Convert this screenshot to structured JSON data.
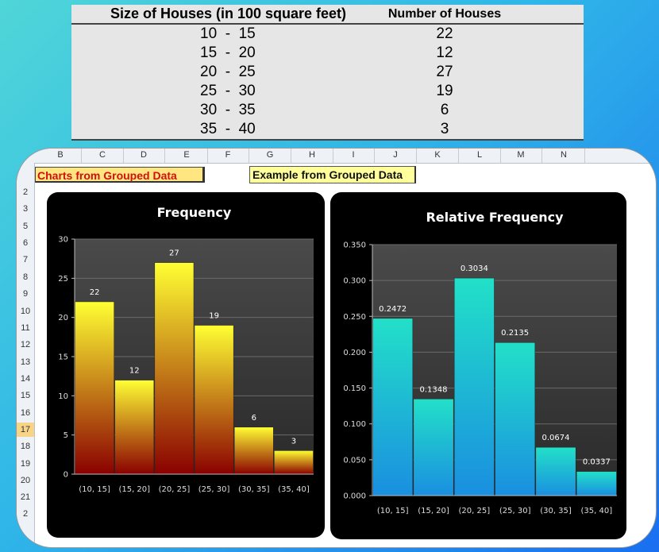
{
  "table": {
    "headers": [
      "Size of Houses (in 100 square feet)",
      "Number of Houses"
    ],
    "rows": [
      {
        "low": "10",
        "high": "15",
        "count": "22"
      },
      {
        "low": "15",
        "high": "20",
        "count": "12"
      },
      {
        "low": "20",
        "high": "25",
        "count": "27"
      },
      {
        "low": "25",
        "high": "30",
        "count": "19"
      },
      {
        "low": "30",
        "high": "35",
        "count": "6"
      },
      {
        "low": "35",
        "high": "40",
        "count": "3"
      }
    ]
  },
  "sheet": {
    "columns": [
      "B",
      "C",
      "D",
      "E",
      "F",
      "G",
      "H",
      "I",
      "J",
      "K",
      "L",
      "M",
      "N"
    ],
    "rows": [
      "2",
      "3",
      "5",
      "6",
      "7",
      "8",
      "9",
      "10",
      "11",
      "12",
      "13",
      "14",
      "15",
      "16",
      "17",
      "18",
      "19",
      "20",
      "21",
      "2"
    ],
    "selected_row": "17",
    "label_charts": "Charts from Grouped Data",
    "label_example": "Example from Grouped Data"
  },
  "chart_data": [
    {
      "type": "bar",
      "title": "Frequency",
      "categories": [
        "(10, 15]",
        "(15, 20]",
        "(20, 25]",
        "(25, 30]",
        "(30, 35]",
        "(35, 40]"
      ],
      "values": [
        22,
        12,
        27,
        19,
        6,
        3
      ],
      "data_labels": [
        "22",
        "12",
        "27",
        "19",
        "6",
        "3"
      ],
      "ylim": [
        0,
        30
      ],
      "yticks": [
        0,
        5,
        10,
        15,
        20,
        25,
        30
      ],
      "ytick_labels": [
        "0",
        "5",
        "10",
        "15",
        "20",
        "25",
        "30"
      ],
      "grid": true,
      "colors": {
        "top": "#ffff33",
        "bottom": "#8a0000"
      }
    },
    {
      "type": "bar",
      "title": "Relative Frequency",
      "categories": [
        "(10, 15]",
        "(15, 20]",
        "(20, 25]",
        "(25, 30]",
        "(30, 35]",
        "(35, 40]"
      ],
      "values": [
        0.2472,
        0.1348,
        0.3034,
        0.2135,
        0.0674,
        0.0337
      ],
      "data_labels": [
        "0.2472",
        "0.1348",
        "0.3034",
        "0.2135",
        "0.0674",
        "0.0337"
      ],
      "ylim": [
        0,
        0.35
      ],
      "yticks": [
        0,
        0.05,
        0.1,
        0.15,
        0.2,
        0.25,
        0.3,
        0.35
      ],
      "ytick_labels": [
        "0.000",
        "0.050",
        "0.100",
        "0.150",
        "0.200",
        "0.250",
        "0.300",
        "0.350"
      ],
      "grid": true,
      "colors": {
        "top": "#22e0c8",
        "bottom": "#1a8fe0"
      }
    }
  ]
}
